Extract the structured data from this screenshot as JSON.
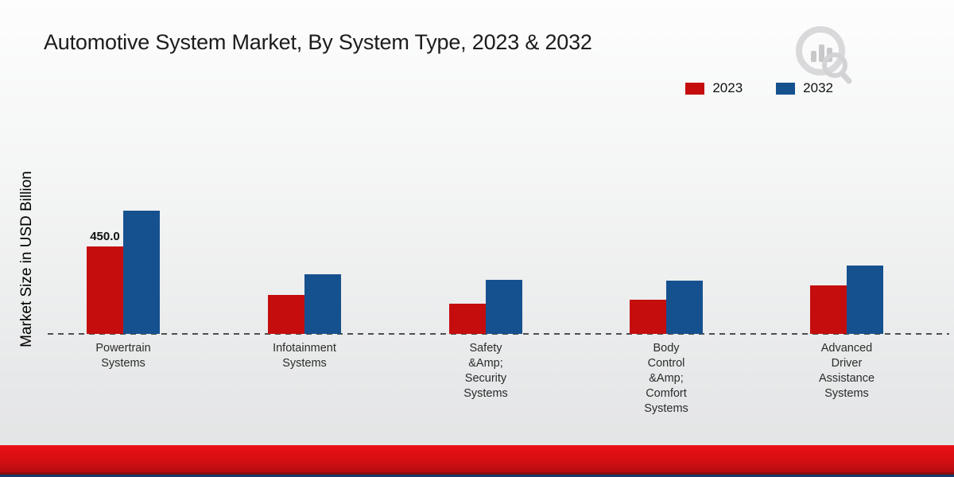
{
  "title": "Automotive System Market, By System Type, 2023 & 2032",
  "y_axis_label": "Market Size in USD Billion",
  "legend": [
    {
      "label": "2023",
      "color": "#c50d0e"
    },
    {
      "label": "2032",
      "color": "#16518f"
    }
  ],
  "colors": {
    "series_2023": "#c50d0e",
    "series_2032": "#16518f",
    "bottom_band": "#d50e12",
    "axis_dash": "#4f4f4f"
  },
  "chart_data": {
    "type": "bar",
    "title": "Automotive System Market, By System Type, 2023 & 2032",
    "xlabel": "",
    "ylabel": "Market Size in USD Billion",
    "grid": false,
    "legend_position": "top-right",
    "axis_line_style": "dashed-baseline-only",
    "ylim": [
      0,
      700
    ],
    "categories": [
      [
        "Powertrain",
        "Systems"
      ],
      [
        "Infotainment",
        "Systems"
      ],
      [
        "Safety",
        "&Amp;",
        "Security",
        "Systems"
      ],
      [
        "Body",
        "Control",
        "&Amp;",
        "Comfort",
        "Systems"
      ],
      [
        "Advanced",
        "Driver",
        "Assistance",
        "Systems"
      ]
    ],
    "series": [
      {
        "name": "2023",
        "color": "#c50d0e",
        "values": [
          450.0,
          200,
          155,
          175,
          250
        ],
        "data_labels": [
          "450.0",
          null,
          null,
          null,
          null
        ]
      },
      {
        "name": "2032",
        "color": "#16518f",
        "values": [
          635,
          305,
          280,
          275,
          350
        ],
        "data_labels": [
          null,
          null,
          null,
          null,
          null
        ]
      }
    ],
    "note": "Only the 450.0 value is labeled on the chart; other values estimated from bar heights."
  }
}
